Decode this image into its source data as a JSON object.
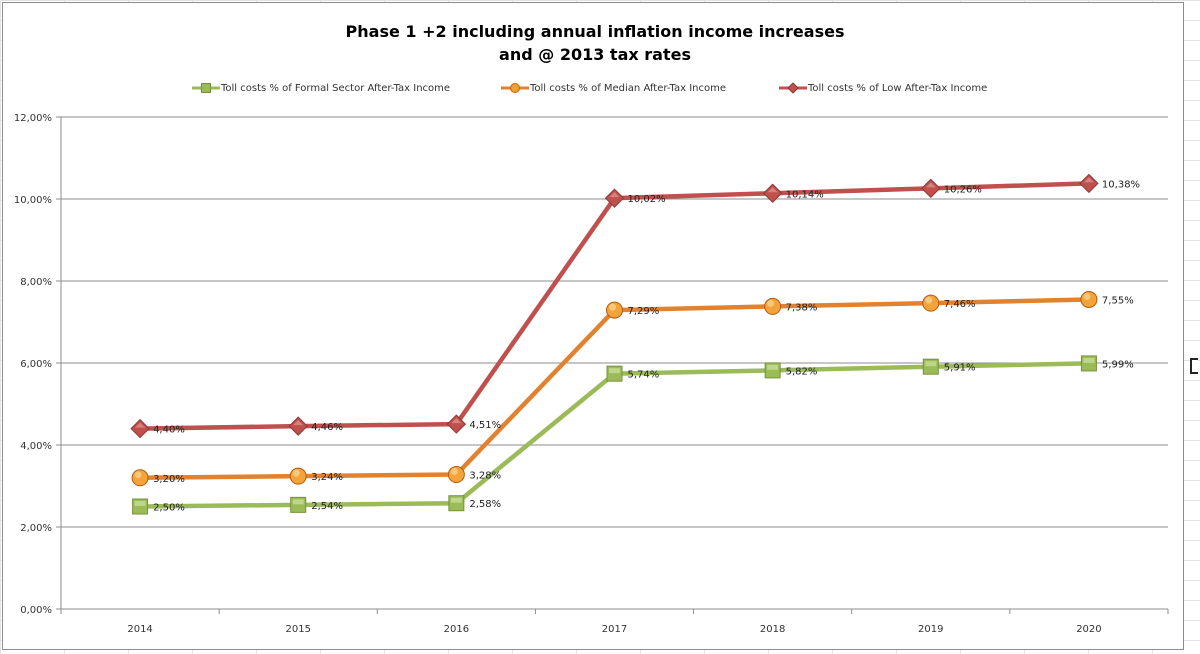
{
  "chart_data": {
    "type": "line",
    "title": [
      "Phase 1 +2 including annual inflation income increases",
      "and @ 2013 tax rates"
    ],
    "categories": [
      "2014",
      "2015",
      "2016",
      "2017",
      "2018",
      "2019",
      "2020"
    ],
    "yticks": [
      "0,00%",
      "2,00%",
      "4,00%",
      "6,00%",
      "8,00%",
      "10,00%",
      "12,00%"
    ],
    "ylim": [
      0,
      12
    ],
    "grid": true,
    "legend_position": "top",
    "series": [
      {
        "name": "Toll costs % of Formal Sector After-Tax Income",
        "color": "#9bbb59",
        "marker": "square",
        "values": [
          2.5,
          2.54,
          2.58,
          5.74,
          5.82,
          5.91,
          5.99
        ],
        "labels": [
          "2,50%",
          "2,54%",
          "2,58%",
          "5,74%",
          "5,82%",
          "5,91%",
          "5,99%"
        ]
      },
      {
        "name": "Toll costs % of Median After-Tax Income",
        "color": "#e3822e",
        "marker": "circle",
        "values": [
          3.2,
          3.24,
          3.28,
          7.29,
          7.38,
          7.46,
          7.55
        ],
        "labels": [
          "3,20%",
          "3,24%",
          "3,28%",
          "7,29%",
          "7,38%",
          "7,46%",
          "7,55%"
        ]
      },
      {
        "name": "Toll costs % of Low After-Tax Income",
        "color": "#c0504d",
        "marker": "diamond",
        "values": [
          4.4,
          4.46,
          4.51,
          10.02,
          10.14,
          10.26,
          10.38
        ],
        "labels": [
          "4,40%",
          "4,46%",
          "4,51%",
          "10,02%",
          "10,14%",
          "10,26%",
          "10,38%"
        ]
      }
    ]
  }
}
